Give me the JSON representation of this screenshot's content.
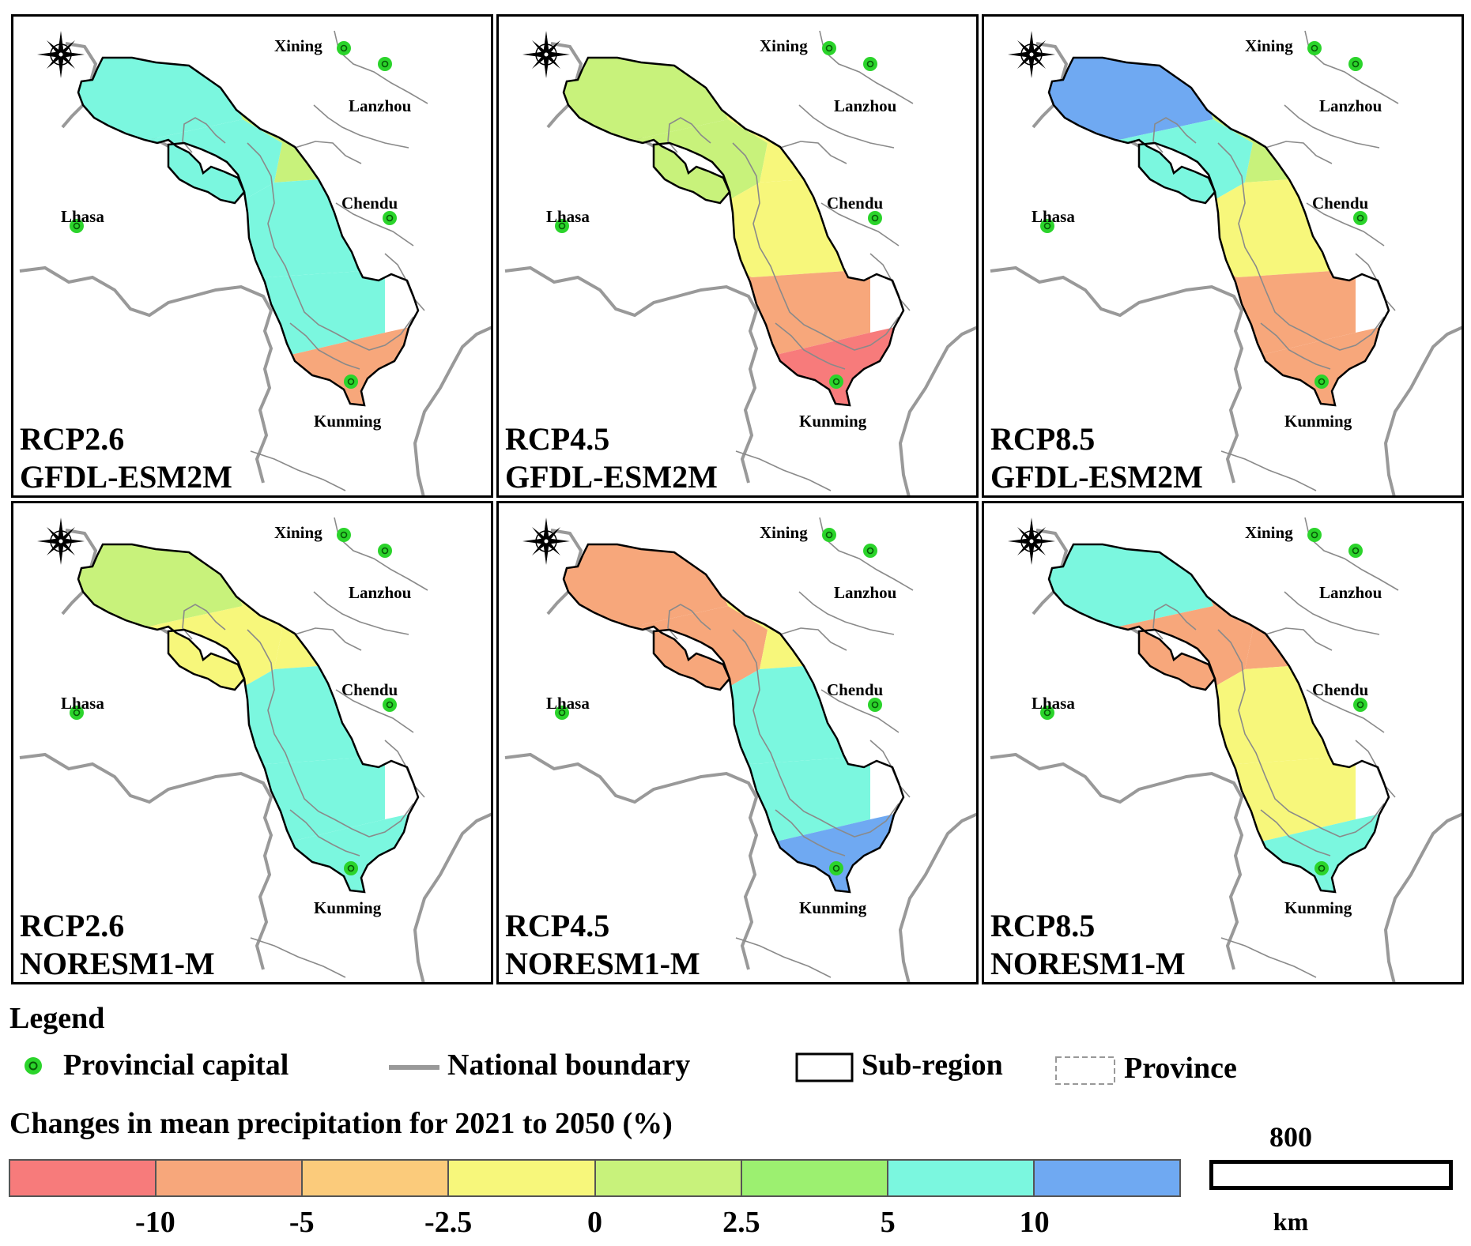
{
  "panels": [
    {
      "scenario": "RCP2.6",
      "model": "GFDL-ESM2M",
      "zones": [
        "cyan",
        "cyan",
        "green",
        "cyan",
        "cyan",
        "orange"
      ]
    },
    {
      "scenario": "RCP4.5",
      "model": "GFDL-ESM2M",
      "zones": [
        "green",
        "green",
        "yellow",
        "yellow",
        "orange",
        "red"
      ]
    },
    {
      "scenario": "RCP8.5",
      "model": "GFDL-ESM2M",
      "zones": [
        "blue",
        "cyan",
        "green",
        "yellow",
        "orange",
        "orange"
      ]
    },
    {
      "scenario": "RCP2.6",
      "model": "NORESM1-M",
      "zones": [
        "green",
        "yellow",
        "yellow",
        "cyan",
        "cyan",
        "cyan"
      ]
    },
    {
      "scenario": "RCP4.5",
      "model": "NORESM1-M",
      "zones": [
        "orange",
        "orange",
        "yellow",
        "cyan",
        "cyan",
        "blue"
      ]
    },
    {
      "scenario": "RCP8.5",
      "model": "NORESM1-M",
      "zones": [
        "cyan",
        "orange",
        "orange",
        "yellow",
        "yellow",
        "cyan"
      ]
    }
  ],
  "cities": [
    "Xining",
    "Lanzhou",
    "Chendu",
    "Lhasa",
    "Kunming"
  ],
  "colors": {
    "red": "#F77B7B",
    "orange": "#F7A77B",
    "lightorange": "#FBCB7B",
    "yellow": "#F7F77B",
    "green": "#C8F27B",
    "brightgreen": "#9CF070",
    "cyan": "#7BF7DF",
    "blue": "#6FA9F2",
    "capital": "#2BD42B",
    "national": "#999999"
  },
  "legend": {
    "title": "Legend",
    "items": {
      "capital": "Provincial capital",
      "national": "National boundary",
      "subregion": "Sub-region",
      "province": "Province"
    }
  },
  "colorbar": {
    "title": "Changes in mean precipitation  for 2021 to 2050 (%)",
    "colors": [
      "red",
      "orange",
      "lightorange",
      "yellow",
      "green",
      "brightgreen",
      "cyan",
      "blue"
    ],
    "ticks": [
      "-10",
      "-5",
      "-2.5",
      "0",
      "2.5",
      "5",
      "10"
    ]
  },
  "scalebar": {
    "value": "800",
    "unit": "km"
  }
}
